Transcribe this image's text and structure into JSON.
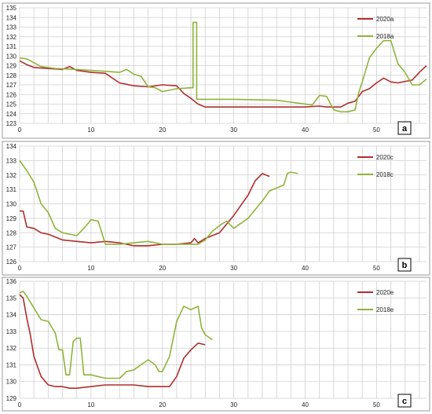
{
  "colors": {
    "red": "#b22d2d",
    "green": "#8fb33a",
    "grid": "#cfcfcf",
    "frame": "#9a9a9a"
  },
  "chart_data": [
    {
      "type": "line",
      "panel_label": "a",
      "xlim": [
        0,
        57
      ],
      "ylim": [
        123,
        135
      ],
      "x_ticks": [
        0,
        10,
        20,
        30,
        40,
        50
      ],
      "y_ticks": [
        123,
        124,
        125,
        126,
        127,
        128,
        129,
        130,
        131,
        132,
        133,
        134,
        135
      ],
      "grid": true,
      "legend": "top-right",
      "series": [
        {
          "name": "2020a",
          "color": "red",
          "points": [
            [
              0,
              129.5
            ],
            [
              1,
              129.1
            ],
            [
              2,
              128.8
            ],
            [
              4,
              128.7
            ],
            [
              6,
              128.6
            ],
            [
              7,
              128.9
            ],
            [
              8,
              128.5
            ],
            [
              10,
              128.3
            ],
            [
              12,
              128.2
            ],
            [
              14,
              127.2
            ],
            [
              16,
              126.9
            ],
            [
              18,
              126.8
            ],
            [
              20,
              127.0
            ],
            [
              22,
              126.9
            ],
            [
              23,
              126.1
            ],
            [
              24,
              125.6
            ],
            [
              25,
              125.0
            ],
            [
              26,
              124.7
            ],
            [
              30,
              124.7
            ],
            [
              36,
              124.7
            ],
            [
              40,
              124.7
            ],
            [
              42,
              124.8
            ],
            [
              43,
              124.7
            ],
            [
              45,
              124.7
            ],
            [
              46,
              125.1
            ],
            [
              47,
              125.3
            ],
            [
              48,
              126.3
            ],
            [
              49,
              126.6
            ],
            [
              50,
              127.2
            ],
            [
              51,
              127.7
            ],
            [
              52,
              127.3
            ],
            [
              53,
              127.2
            ],
            [
              55,
              127.5
            ],
            [
              56,
              128.3
            ],
            [
              57,
              129.0
            ]
          ]
        },
        {
          "name": "2018a",
          "color": "green",
          "points": [
            [
              0,
              129.8
            ],
            [
              1,
              129.7
            ],
            [
              2,
              129.3
            ],
            [
              3,
              128.9
            ],
            [
              5,
              128.7
            ],
            [
              8,
              128.6
            ],
            [
              10,
              128.5
            ],
            [
              12,
              128.4
            ],
            [
              14,
              128.3
            ],
            [
              15,
              128.6
            ],
            [
              16,
              128.1
            ],
            [
              17,
              127.9
            ],
            [
              18,
              126.8
            ],
            [
              19,
              126.7
            ],
            [
              20,
              126.3
            ],
            [
              22,
              126.6
            ],
            [
              24,
              126.7
            ],
            [
              24.3,
              126.7
            ],
            [
              24.3,
              133.5
            ],
            [
              24.8,
              133.5
            ],
            [
              24.8,
              125.5
            ],
            [
              30,
              125.5
            ],
            [
              36,
              125.4
            ],
            [
              38,
              125.2
            ],
            [
              41,
              124.9
            ],
            [
              42,
              125.9
            ],
            [
              43,
              125.8
            ],
            [
              44,
              124.4
            ],
            [
              45,
              124.2
            ],
            [
              46,
              124.2
            ],
            [
              47,
              124.4
            ],
            [
              47.5,
              126.2
            ],
            [
              48,
              127.3
            ],
            [
              49,
              129.8
            ],
            [
              50,
              130.8
            ],
            [
              51,
              131.6
            ],
            [
              52,
              131.6
            ],
            [
              53,
              129.2
            ],
            [
              54,
              128.3
            ],
            [
              55,
              127.0
            ],
            [
              56,
              127.0
            ],
            [
              57,
              127.6
            ]
          ]
        }
      ]
    },
    {
      "type": "line",
      "panel_label": "b",
      "xlim": [
        0,
        57
      ],
      "ylim": [
        126,
        134
      ],
      "x_ticks": [
        0,
        10,
        20,
        30,
        40,
        50
      ],
      "y_ticks": [
        126,
        127,
        128,
        129,
        130,
        131,
        132,
        133,
        134
      ],
      "grid": true,
      "legend": "top-right",
      "series": [
        {
          "name": "2020c",
          "color": "red",
          "points": [
            [
              0,
              129.5
            ],
            [
              0.5,
              129.5
            ],
            [
              1,
              128.4
            ],
            [
              2,
              128.3
            ],
            [
              3,
              128.0
            ],
            [
              4,
              127.9
            ],
            [
              6,
              127.5
            ],
            [
              8,
              127.4
            ],
            [
              10,
              127.3
            ],
            [
              12,
              127.4
            ],
            [
              14,
              127.3
            ],
            [
              16,
              127.1
            ],
            [
              18,
              127.1
            ],
            [
              20,
              127.2
            ],
            [
              22,
              127.2
            ],
            [
              24,
              127.3
            ],
            [
              24.5,
              127.6
            ],
            [
              25,
              127.3
            ],
            [
              26,
              127.6
            ],
            [
              28,
              128.0
            ],
            [
              30,
              129.2
            ],
            [
              32,
              130.6
            ],
            [
              33,
              131.6
            ],
            [
              34,
              132.1
            ],
            [
              35,
              131.9
            ]
          ]
        },
        {
          "name": "2018c",
          "color": "green",
          "points": [
            [
              0,
              133.0
            ],
            [
              1,
              132.3
            ],
            [
              2,
              131.5
            ],
            [
              3,
              130.0
            ],
            [
              4,
              129.4
            ],
            [
              5,
              128.3
            ],
            [
              6,
              128.0
            ],
            [
              7,
              127.9
            ],
            [
              8,
              127.8
            ],
            [
              9,
              128.3
            ],
            [
              10,
              128.9
            ],
            [
              11,
              128.8
            ],
            [
              12,
              127.2
            ],
            [
              14,
              127.2
            ],
            [
              16,
              127.3
            ],
            [
              18,
              127.4
            ],
            [
              20,
              127.2
            ],
            [
              22,
              127.2
            ],
            [
              24,
              127.2
            ],
            [
              25,
              127.2
            ],
            [
              26,
              127.5
            ],
            [
              27,
              128.1
            ],
            [
              28,
              128.5
            ],
            [
              29,
              128.8
            ],
            [
              30,
              128.3
            ],
            [
              32,
              129.0
            ],
            [
              34,
              130.2
            ],
            [
              35,
              130.9
            ],
            [
              36,
              131.1
            ],
            [
              37,
              131.3
            ],
            [
              37.5,
              132.1
            ],
            [
              38,
              132.2
            ],
            [
              39,
              132.1
            ]
          ]
        }
      ]
    },
    {
      "type": "line",
      "panel_label": "c",
      "xlim": [
        0,
        57
      ],
      "ylim": [
        129,
        136
      ],
      "x_ticks": [
        0,
        10,
        20,
        30,
        40,
        50
      ],
      "y_ticks": [
        129,
        130,
        131,
        132,
        133,
        134,
        135,
        136
      ],
      "grid": true,
      "legend": "top-right",
      "series": [
        {
          "name": "2020e",
          "color": "red",
          "points": [
            [
              0,
              135.2
            ],
            [
              0.5,
              135.0
            ],
            [
              1,
              133.8
            ],
            [
              1.5,
              132.8
            ],
            [
              2,
              131.5
            ],
            [
              3,
              130.3
            ],
            [
              4,
              129.8
            ],
            [
              5,
              129.7
            ],
            [
              6,
              129.7
            ],
            [
              7,
              129.6
            ],
            [
              8,
              129.6
            ],
            [
              10,
              129.7
            ],
            [
              12,
              129.8
            ],
            [
              14,
              129.8
            ],
            [
              16,
              129.8
            ],
            [
              18,
              129.7
            ],
            [
              20,
              129.7
            ],
            [
              21,
              129.7
            ],
            [
              22,
              130.3
            ],
            [
              23,
              131.4
            ],
            [
              24,
              131.9
            ],
            [
              25,
              132.3
            ],
            [
              26,
              132.2
            ]
          ]
        },
        {
          "name": "2018e",
          "color": "green",
          "points": [
            [
              0,
              135.3
            ],
            [
              0.5,
              135.4
            ],
            [
              1,
              135.1
            ],
            [
              2,
              134.4
            ],
            [
              3,
              133.7
            ],
            [
              4,
              133.6
            ],
            [
              5,
              132.9
            ],
            [
              5.5,
              131.9
            ],
            [
              6,
              131.9
            ],
            [
              6.5,
              130.4
            ],
            [
              7,
              130.4
            ],
            [
              7.5,
              132.4
            ],
            [
              8,
              132.6
            ],
            [
              8.5,
              132.6
            ],
            [
              9,
              130.4
            ],
            [
              10,
              130.4
            ],
            [
              12,
              130.2
            ],
            [
              14,
              130.2
            ],
            [
              15,
              130.6
            ],
            [
              16,
              130.7
            ],
            [
              17,
              131.0
            ],
            [
              18,
              131.3
            ],
            [
              19,
              131.0
            ],
            [
              19.5,
              130.6
            ],
            [
              20,
              130.6
            ],
            [
              21,
              131.5
            ],
            [
              22,
              133.6
            ],
            [
              23,
              134.5
            ],
            [
              24,
              134.3
            ],
            [
              25,
              134.5
            ],
            [
              25.5,
              133.2
            ],
            [
              26,
              132.8
            ],
            [
              27,
              132.5
            ]
          ]
        }
      ]
    }
  ]
}
